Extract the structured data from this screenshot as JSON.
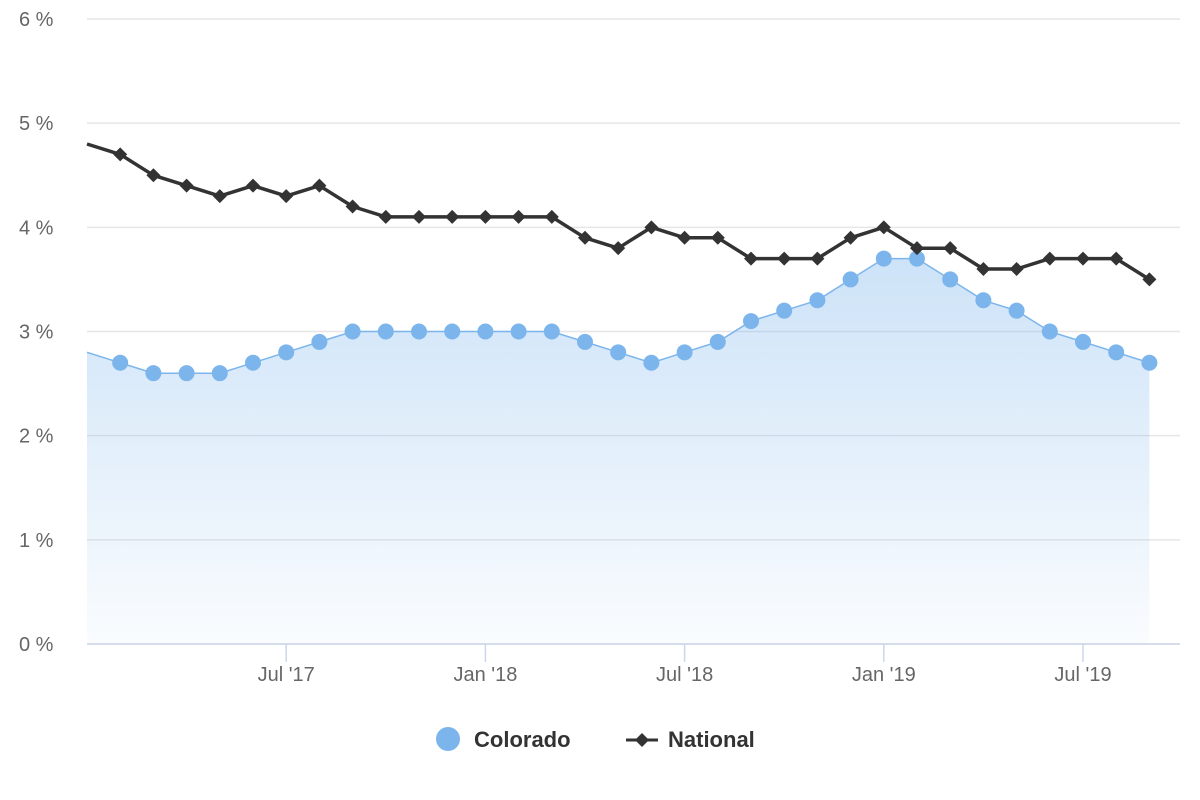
{
  "colors": {
    "colorado": "#7cb5ec",
    "national": "#333333",
    "grid": "#e6e6e6",
    "axis": "#ccd6eb",
    "tick_text": "#666666"
  },
  "chart_data": {
    "type": "line",
    "x_start": "2017-01",
    "x_end": "2019-09",
    "x_tick_labels": [
      {
        "date": "2017-07",
        "label": "Jul '17"
      },
      {
        "date": "2018-01",
        "label": "Jan '18"
      },
      {
        "date": "2018-07",
        "label": "Jul '18"
      },
      {
        "date": "2019-01",
        "label": "Jan '19"
      },
      {
        "date": "2019-07",
        "label": "Jul '19"
      }
    ],
    "y_tick_labels": [
      "0 %",
      "1 %",
      "2 %",
      "3 %",
      "4 %",
      "5 %",
      "6 %"
    ],
    "ylim": [
      0,
      6
    ],
    "grid": true,
    "legend_position": "bottom-center",
    "x": [
      "2017-01",
      "2017-02",
      "2017-03",
      "2017-04",
      "2017-05",
      "2017-06",
      "2017-07",
      "2017-08",
      "2017-09",
      "2017-10",
      "2017-11",
      "2017-12",
      "2018-01",
      "2018-02",
      "2018-03",
      "2018-04",
      "2018-05",
      "2018-06",
      "2018-07",
      "2018-08",
      "2018-09",
      "2018-10",
      "2018-11",
      "2018-12",
      "2019-01",
      "2019-02",
      "2019-03",
      "2019-04",
      "2019-05",
      "2019-06",
      "2019-07",
      "2019-08",
      "2019-09"
    ],
    "series": [
      {
        "name": "Colorado",
        "type": "area",
        "marker": "circle",
        "values": [
          2.8,
          2.7,
          2.6,
          2.6,
          2.6,
          2.7,
          2.8,
          2.9,
          3.0,
          3.0,
          3.0,
          3.0,
          3.0,
          3.0,
          3.0,
          2.9,
          2.8,
          2.7,
          2.8,
          2.9,
          3.1,
          3.2,
          3.3,
          3.5,
          3.7,
          3.7,
          3.5,
          3.3,
          3.2,
          3.0,
          2.9,
          2.8,
          2.7
        ]
      },
      {
        "name": "National",
        "type": "line",
        "marker": "diamond",
        "values": [
          4.8,
          4.7,
          4.5,
          4.4,
          4.3,
          4.4,
          4.3,
          4.4,
          4.2,
          4.1,
          4.1,
          4.1,
          4.1,
          4.1,
          4.1,
          3.9,
          3.8,
          4.0,
          3.9,
          3.9,
          3.7,
          3.7,
          3.7,
          3.9,
          4.0,
          3.8,
          3.8,
          3.6,
          3.6,
          3.7,
          3.7,
          3.7,
          3.5
        ]
      }
    ]
  }
}
